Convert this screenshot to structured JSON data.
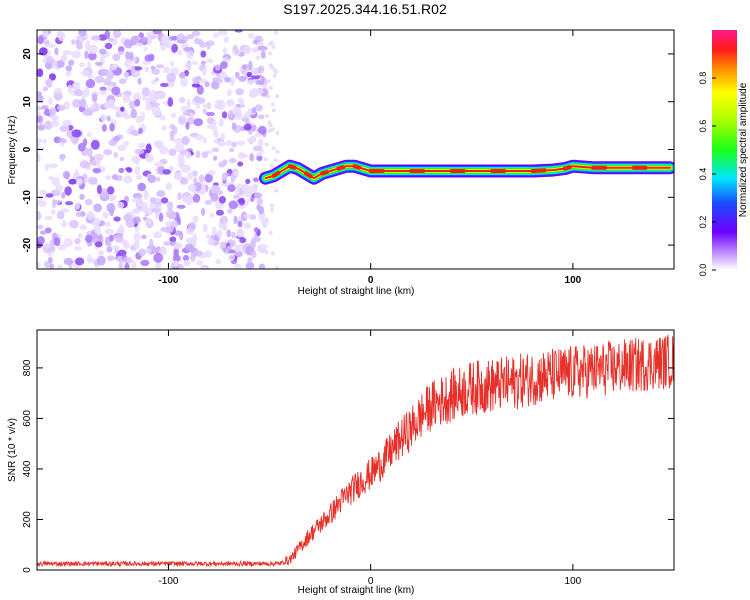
{
  "title": "S197.2025.344.16.51.R02",
  "chart_data": [
    {
      "type": "heatmap",
      "title": "S197.2025.344.16.51.R02",
      "xlabel": "Height of straight line (km)",
      "ylabel": "Frequency (Hz)",
      "xlim": [
        -165,
        150
      ],
      "ylim": [
        -25,
        25
      ],
      "xticks": [
        -100,
        0,
        100
      ],
      "yticks": [
        -20,
        -10,
        0,
        10,
        20
      ],
      "colorbar": {
        "label": "Normalized spectral amplitude",
        "range": [
          0,
          1
        ],
        "ticks": [
          "0.0",
          "0.2",
          "0.4",
          "0.6",
          "0.8"
        ]
      },
      "noise_region_x": [
        -165,
        -52
      ],
      "signal_track": {
        "x": [
          -52,
          -48,
          -44,
          -40,
          -36,
          -32,
          -28,
          -24,
          -20,
          -16,
          -12,
          -8,
          -4,
          0,
          10,
          20,
          30,
          40,
          50,
          60,
          70,
          80,
          90,
          96,
          100,
          110,
          120,
          130,
          140,
          148
        ],
        "freq_hz": [
          -6,
          -5.5,
          -4.5,
          -3.5,
          -4,
          -5,
          -6,
          -5,
          -4.5,
          -4,
          -3.5,
          -3.5,
          -4,
          -4.5,
          -4.5,
          -4.5,
          -4.5,
          -4.5,
          -4.5,
          -4.5,
          -4.5,
          -4.5,
          -4.3,
          -4,
          -3.5,
          -3.8,
          -3.8,
          -3.8,
          -3.8,
          -3.8
        ]
      }
    },
    {
      "type": "line",
      "xlabel": "Height of straight line (km)",
      "ylabel": "SNR (10 * v/v)",
      "xlim": [
        -165,
        150
      ],
      "ylim": [
        0,
        950
      ],
      "xticks": [
        -100,
        0,
        100
      ],
      "yticks": [
        0,
        200,
        400,
        600,
        800
      ],
      "series": [
        {
          "name": "SNR",
          "color": "#e8302a",
          "x": [
            -165,
            -140,
            -120,
            -100,
            -80,
            -60,
            -45,
            -40,
            -35,
            -30,
            -25,
            -20,
            -15,
            -10,
            -5,
            0,
            5,
            10,
            15,
            20,
            25,
            30,
            40,
            50,
            60,
            70,
            80,
            90,
            100,
            110,
            120,
            130,
            140,
            150
          ],
          "values": [
            25,
            25,
            25,
            25,
            25,
            25,
            25,
            40,
            90,
            140,
            180,
            220,
            270,
            310,
            350,
            380,
            420,
            470,
            520,
            560,
            610,
            650,
            690,
            720,
            730,
            740,
            760,
            770,
            780,
            790,
            800,
            810,
            820,
            830
          ]
        }
      ]
    }
  ]
}
